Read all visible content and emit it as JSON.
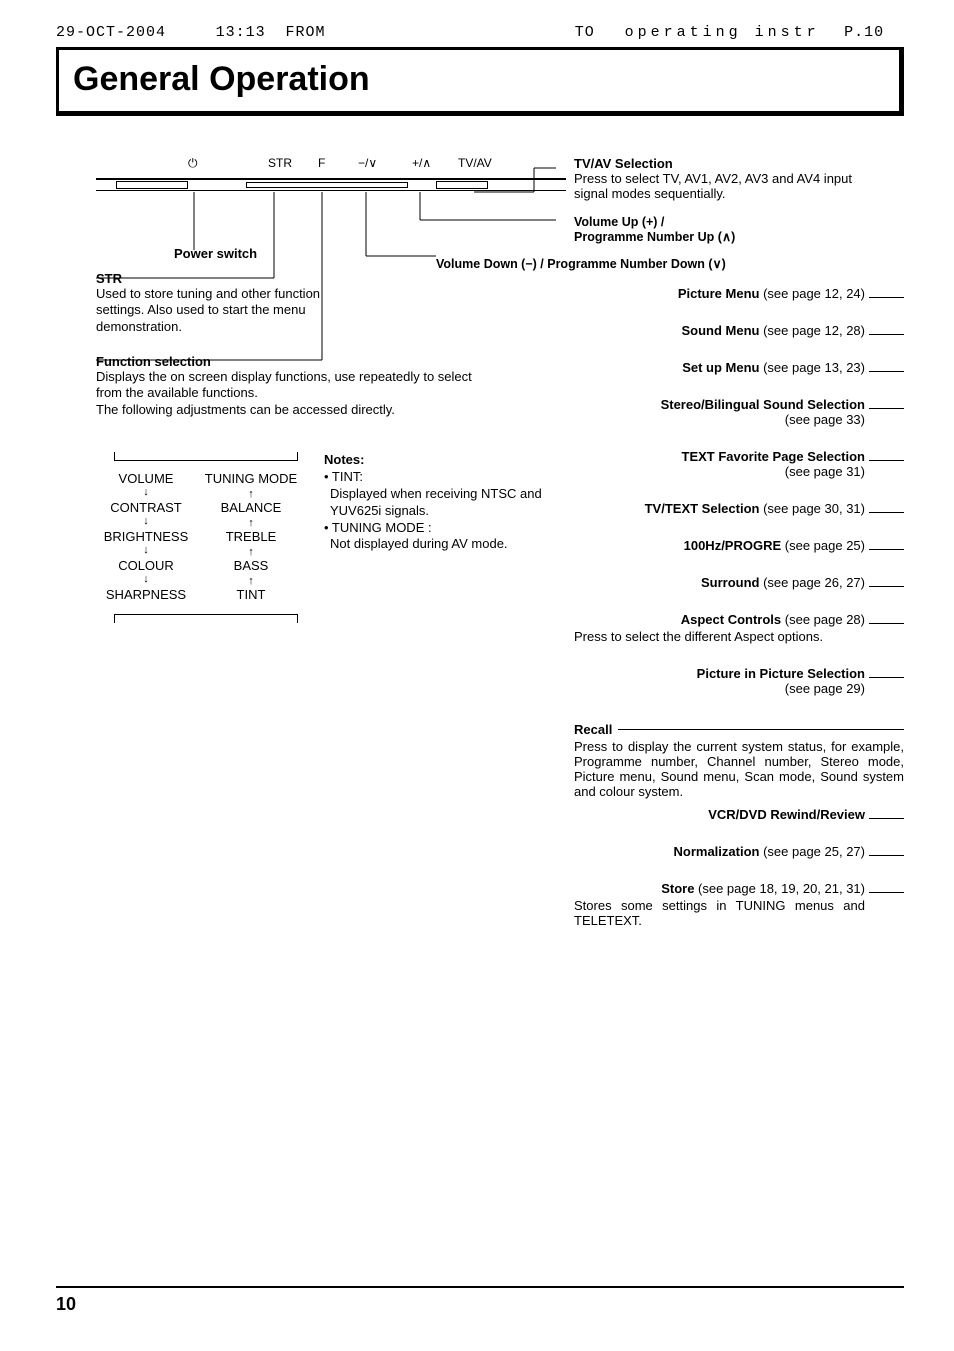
{
  "fax": {
    "date": "29-OCT-2004",
    "time": "13:13",
    "from": "FROM",
    "to": "TO",
    "title": "operating instr",
    "page": "P.10"
  },
  "title": "General Operation",
  "panel": {
    "power_glyph": "⏻",
    "str": "STR",
    "f": "F",
    "vol_down": "−/∨",
    "vol_up": "+/∧",
    "tvav": "TV/AV"
  },
  "left": {
    "power_switch": "Power switch",
    "str_head": "STR",
    "str_body": "Used to store tuning and other function settings. Also used to start the menu demonstration.",
    "func_head": "Function selection",
    "func_body1": "Displays the on screen display functions, use repeatedly to select from the available functions.",
    "func_body2": "The following adjustments can be accessed directly."
  },
  "adjust": {
    "col1": [
      "VOLUME",
      "CONTRAST",
      "BRIGHTNESS",
      "COLOUR",
      "SHARPNESS"
    ],
    "col2": [
      "TUNING MODE",
      "BALANCE",
      "TREBLE",
      "BASS",
      "TINT"
    ]
  },
  "notes": {
    "head": "Notes:",
    "l1": "• TINT:",
    "l2": "Displayed when receiving NTSC and YUV625i signals.",
    "l3": "• TUNING MODE :",
    "l4": "Not displayed during AV mode."
  },
  "mid": {
    "vol_down_line": "Volume Down (−) / Programme Number Down (∨)",
    "vol_up_line1": "Volume Up (+) /",
    "vol_up_line2": "Programme Number Up (∧)"
  },
  "right": {
    "tvav_title": "TV/AV Selection",
    "tvav_body": "Press to select TV, AV1, AV2, AV3 and AV4 input signal modes sequentially.",
    "items": [
      {
        "t": "Picture Menu",
        "s": "(see page 12, 24)"
      },
      {
        "t": "Sound Menu",
        "s": "(see page 12, 28)"
      },
      {
        "t": "Set up Menu",
        "s": "(see page 13, 23)"
      },
      {
        "t": "Stereo/Bilingual Sound Selection",
        "sub": "(see page 33)"
      },
      {
        "t": "TEXT Favorite Page Selection",
        "sub": "(see page 31)"
      },
      {
        "t": "TV/TEXT Selection",
        "s": "(see page 30, 31)"
      },
      {
        "t": "100Hz/PROGRE",
        "s": "(see page 25)"
      },
      {
        "t": "Surround",
        "s": "(see page 26, 27)"
      },
      {
        "t": "Aspect Controls",
        "s": "(see page 28)",
        "body": "Press to select the different Aspect options."
      },
      {
        "t": "Picture in Picture Selection",
        "sub": "(see page 29)"
      }
    ],
    "recall_label": "Recall",
    "recall_body": "Press to display the current system status, for example, Programme number, Channel number, Stereo mode, Picture menu, Sound menu, Scan mode, Sound system and colour system.",
    "items2": [
      {
        "t": "VCR/DVD Rewind/Review",
        "s": ""
      },
      {
        "t": "Normalization",
        "s": "(see page 25, 27)"
      },
      {
        "t": "Store",
        "s": "(see page 18, 19, 20, 21, 31)",
        "body": "Stores some settings in TUNING menus and TELETEXT."
      }
    ]
  },
  "page_number": "10"
}
